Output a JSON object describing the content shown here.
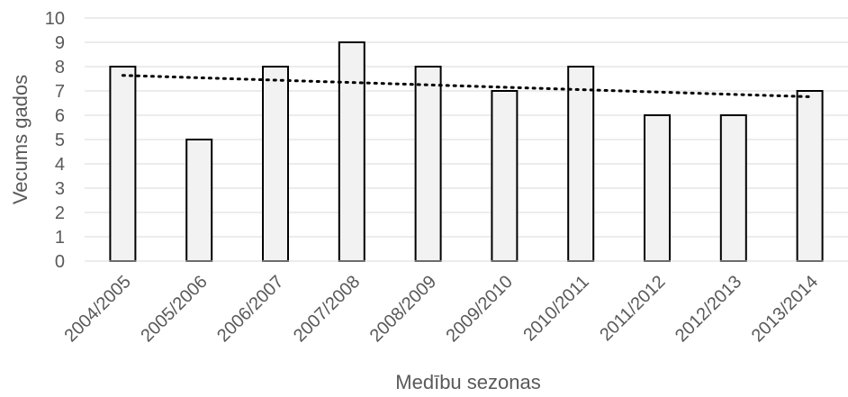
{
  "chart_data": {
    "type": "bar",
    "title": "",
    "xlabel": "Medību sezonas",
    "ylabel": "Vecums gados",
    "categories": [
      "2004/2005",
      "2005/2006",
      "2006/2007",
      "2007/2008",
      "2008/2009",
      "2009/2010",
      "2010/2011",
      "2011/2012",
      "2012/2013",
      "2013/2014"
    ],
    "values": [
      8,
      5,
      8,
      9,
      8,
      7,
      8,
      6,
      6,
      7
    ],
    "ylim": [
      0,
      10
    ],
    "yticks": [
      "0",
      "1",
      "2",
      "3",
      "4",
      "5",
      "6",
      "7",
      "8",
      "9",
      "10"
    ],
    "grid": true,
    "trendline": {
      "type": "linear",
      "start": 7.64,
      "end": 6.76
    },
    "colors": {
      "bar_fill": "#f2f2f2",
      "bar_stroke": "#000000",
      "grid": "#d9d9d9",
      "text": "#595959",
      "trend": "#000000"
    }
  }
}
